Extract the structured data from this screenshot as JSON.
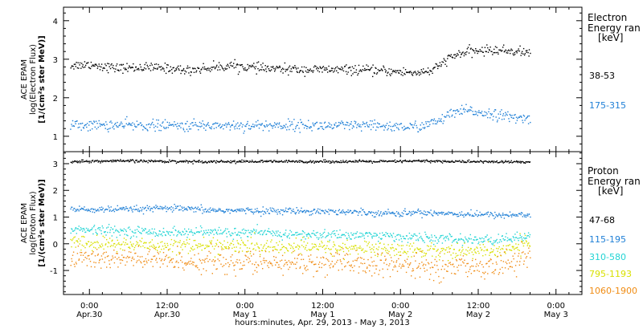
{
  "chart_data": {
    "type": "scatter",
    "xlabel": "hours:minutes, Apr. 29, 2013 - May 3, 2013",
    "x_ticks": [
      {
        "time": "Apr.30 0:00",
        "hour": 24,
        "line1": "0:00",
        "line2": "Apr.30"
      },
      {
        "time": "Apr.30 12:00",
        "hour": 36,
        "line1": "12:00",
        "line2": "Apr.30"
      },
      {
        "time": "May 1 0:00",
        "hour": 48,
        "line1": "0:00",
        "line2": "May 1"
      },
      {
        "time": "May 1 12:00",
        "hour": 60,
        "line1": "12:00",
        "line2": "May 1"
      },
      {
        "time": "May 2 0:00",
        "hour": 72,
        "line1": "0:00",
        "line2": "May 2"
      },
      {
        "time": "May 2 12:00",
        "hour": 84,
        "line1": "12:00",
        "line2": "May 2"
      },
      {
        "time": "May 3 0:00",
        "hour": 96,
        "line1": "0:00",
        "line2": "May 3"
      }
    ],
    "xlim_hours": [
      20,
      100
    ],
    "panels": [
      {
        "id": "electron",
        "ylabel_lines": [
          "ACE EPAM",
          "log(Electron Flux)",
          "[1/(cm²s ster MeV)]"
        ],
        "ylim": [
          0.6,
          4.35
        ],
        "yticks": [
          "1",
          "2",
          "3",
          "4"
        ],
        "ytick_values": [
          1,
          2,
          3,
          4
        ],
        "legend_title": [
          "Electron",
          "Energy ran",
          "[keV]"
        ],
        "series": [
          {
            "name": "38-53",
            "color": "#000000",
            "noise": 0.06,
            "points": [
              [
                21,
                2.85
              ],
              [
                24,
                2.88
              ],
              [
                28,
                2.78
              ],
              [
                32,
                2.8
              ],
              [
                36,
                2.78
              ],
              [
                39,
                2.72
              ],
              [
                42,
                2.78
              ],
              [
                46,
                2.85
              ],
              [
                50,
                2.78
              ],
              [
                54,
                2.75
              ],
              [
                58,
                2.74
              ],
              [
                62,
                2.74
              ],
              [
                66,
                2.73
              ],
              [
                70,
                2.7
              ],
              [
                74,
                2.66
              ],
              [
                77,
                2.72
              ],
              [
                79,
                3.0
              ],
              [
                81,
                3.15
              ],
              [
                83,
                3.22
              ],
              [
                86,
                3.25
              ],
              [
                89,
                3.23
              ],
              [
                92,
                3.18
              ]
            ]
          },
          {
            "name": "175-315",
            "color": "#1e7fd6",
            "noise": 0.07,
            "points": [
              [
                21,
                1.3
              ],
              [
                26,
                1.3
              ],
              [
                32,
                1.3
              ],
              [
                38,
                1.28
              ],
              [
                44,
                1.3
              ],
              [
                50,
                1.29
              ],
              [
                56,
                1.3
              ],
              [
                62,
                1.28
              ],
              [
                68,
                1.28
              ],
              [
                74,
                1.25
              ],
              [
                77,
                1.35
              ],
              [
                80,
                1.6
              ],
              [
                82,
                1.68
              ],
              [
                86,
                1.6
              ],
              [
                89,
                1.5
              ],
              [
                92,
                1.45
              ]
            ]
          }
        ]
      },
      {
        "id": "proton",
        "ylabel_lines": [
          "ACE EPAM",
          "log(Proton Flux)",
          "[1/(cm²s ster MeV)]"
        ],
        "ylim": [
          -1.9,
          3.45
        ],
        "yticks": [
          "-1",
          "0",
          "1",
          "2",
          "3"
        ],
        "ytick_values": [
          -1,
          0,
          1,
          2,
          3
        ],
        "legend_title": [
          "Proton",
          "Energy ran",
          "[keV]"
        ],
        "series": [
          {
            "name": "47-68",
            "color": "#000000",
            "noise": 0.025,
            "points": [
              [
                21,
                3.1
              ],
              [
                30,
                3.12
              ],
              [
                40,
                3.1
              ],
              [
                50,
                3.1
              ],
              [
                60,
                3.1
              ],
              [
                70,
                3.1
              ],
              [
                75,
                3.12
              ],
              [
                80,
                3.1
              ],
              [
                92,
                3.08
              ]
            ]
          },
          {
            "name": "115-195",
            "color": "#1e7fd6",
            "noise": 0.06,
            "points": [
              [
                21,
                1.3
              ],
              [
                30,
                1.3
              ],
              [
                36,
                1.35
              ],
              [
                42,
                1.28
              ],
              [
                50,
                1.25
              ],
              [
                58,
                1.25
              ],
              [
                66,
                1.2
              ],
              [
                72,
                1.15
              ],
              [
                75,
                1.2
              ],
              [
                80,
                1.15
              ],
              [
                86,
                1.1
              ],
              [
                92,
                1.1
              ]
            ]
          },
          {
            "name": "310-580",
            "color": "#22d4d4",
            "noise": 0.09,
            "points": [
              [
                21,
                0.55
              ],
              [
                28,
                0.5
              ],
              [
                36,
                0.45
              ],
              [
                44,
                0.45
              ],
              [
                50,
                0.42
              ],
              [
                58,
                0.35
              ],
              [
                66,
                0.35
              ],
              [
                72,
                0.28
              ],
              [
                78,
                0.2
              ],
              [
                86,
                0.15
              ],
              [
                90,
                0.25
              ],
              [
                92,
                0.3
              ]
            ]
          },
          {
            "name": "795-1193",
            "color": "#d8e000",
            "noise": 0.14,
            "points": [
              [
                21,
                0.05
              ],
              [
                28,
                0.0
              ],
              [
                36,
                -0.05
              ],
              [
                44,
                -0.05
              ],
              [
                50,
                -0.1
              ],
              [
                58,
                -0.1
              ],
              [
                66,
                -0.15
              ],
              [
                72,
                -0.2
              ],
              [
                78,
                -0.25
              ],
              [
                86,
                -0.25
              ],
              [
                90,
                -0.1
              ],
              [
                92,
                0.1
              ]
            ]
          },
          {
            "name": "1060-1900",
            "color": "#f08c14",
            "noise": 0.22,
            "points": [
              [
                21,
                -0.5
              ],
              [
                28,
                -0.55
              ],
              [
                36,
                -0.6
              ],
              [
                44,
                -0.65
              ],
              [
                50,
                -0.7
              ],
              [
                58,
                -0.7
              ],
              [
                66,
                -0.75
              ],
              [
                72,
                -0.8
              ],
              [
                78,
                -0.85
              ],
              [
                86,
                -0.8
              ],
              [
                90,
                -0.6
              ],
              [
                92,
                -0.35
              ]
            ]
          }
        ]
      }
    ]
  }
}
